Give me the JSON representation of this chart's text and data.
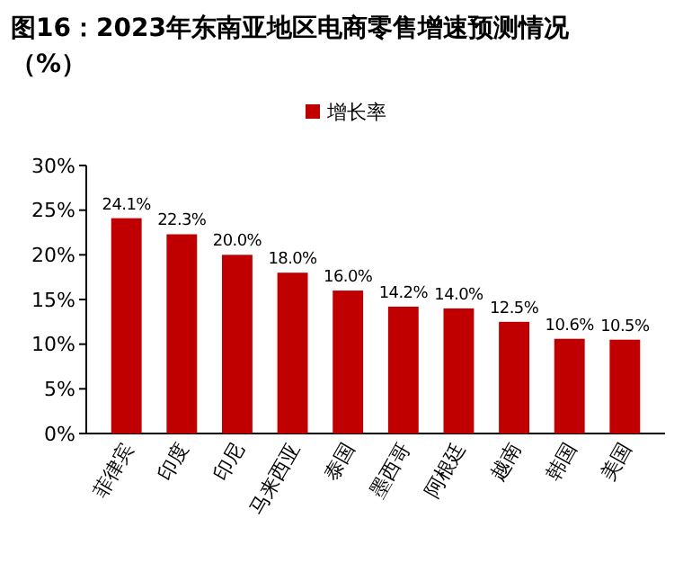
{
  "chart_data": {
    "type": "bar",
    "title": "图16：2023年东南亚地区电商零售增速预测情况（%）",
    "categories": [
      "菲律宾",
      "印度",
      "印尼",
      "马来西亚",
      "泰国",
      "墨西哥",
      "阿根廷",
      "越南",
      "韩国",
      "美国"
    ],
    "series": [
      {
        "name": "增长率",
        "color": "#c00000",
        "values": [
          24.1,
          22.3,
          20.0,
          18.0,
          16.0,
          14.2,
          14.0,
          12.5,
          10.6,
          10.5
        ],
        "value_labels": [
          "24.1%",
          "22.3%",
          "20.0%",
          "18.0%",
          "16.0%",
          "14.2%",
          "14.0%",
          "12.5%",
          "10.6%",
          "10.5%"
        ]
      }
    ],
    "ylim": [
      0,
      30
    ],
    "yticks": [
      {
        "value": 0,
        "label": "0%"
      },
      {
        "value": 5,
        "label": "5%"
      },
      {
        "value": 10,
        "label": "10%"
      },
      {
        "value": 15,
        "label": "15%"
      },
      {
        "value": 20,
        "label": "20%"
      },
      {
        "value": 25,
        "label": "25%"
      },
      {
        "value": 30,
        "label": "30%"
      }
    ],
    "grid": false,
    "legend": "top"
  }
}
